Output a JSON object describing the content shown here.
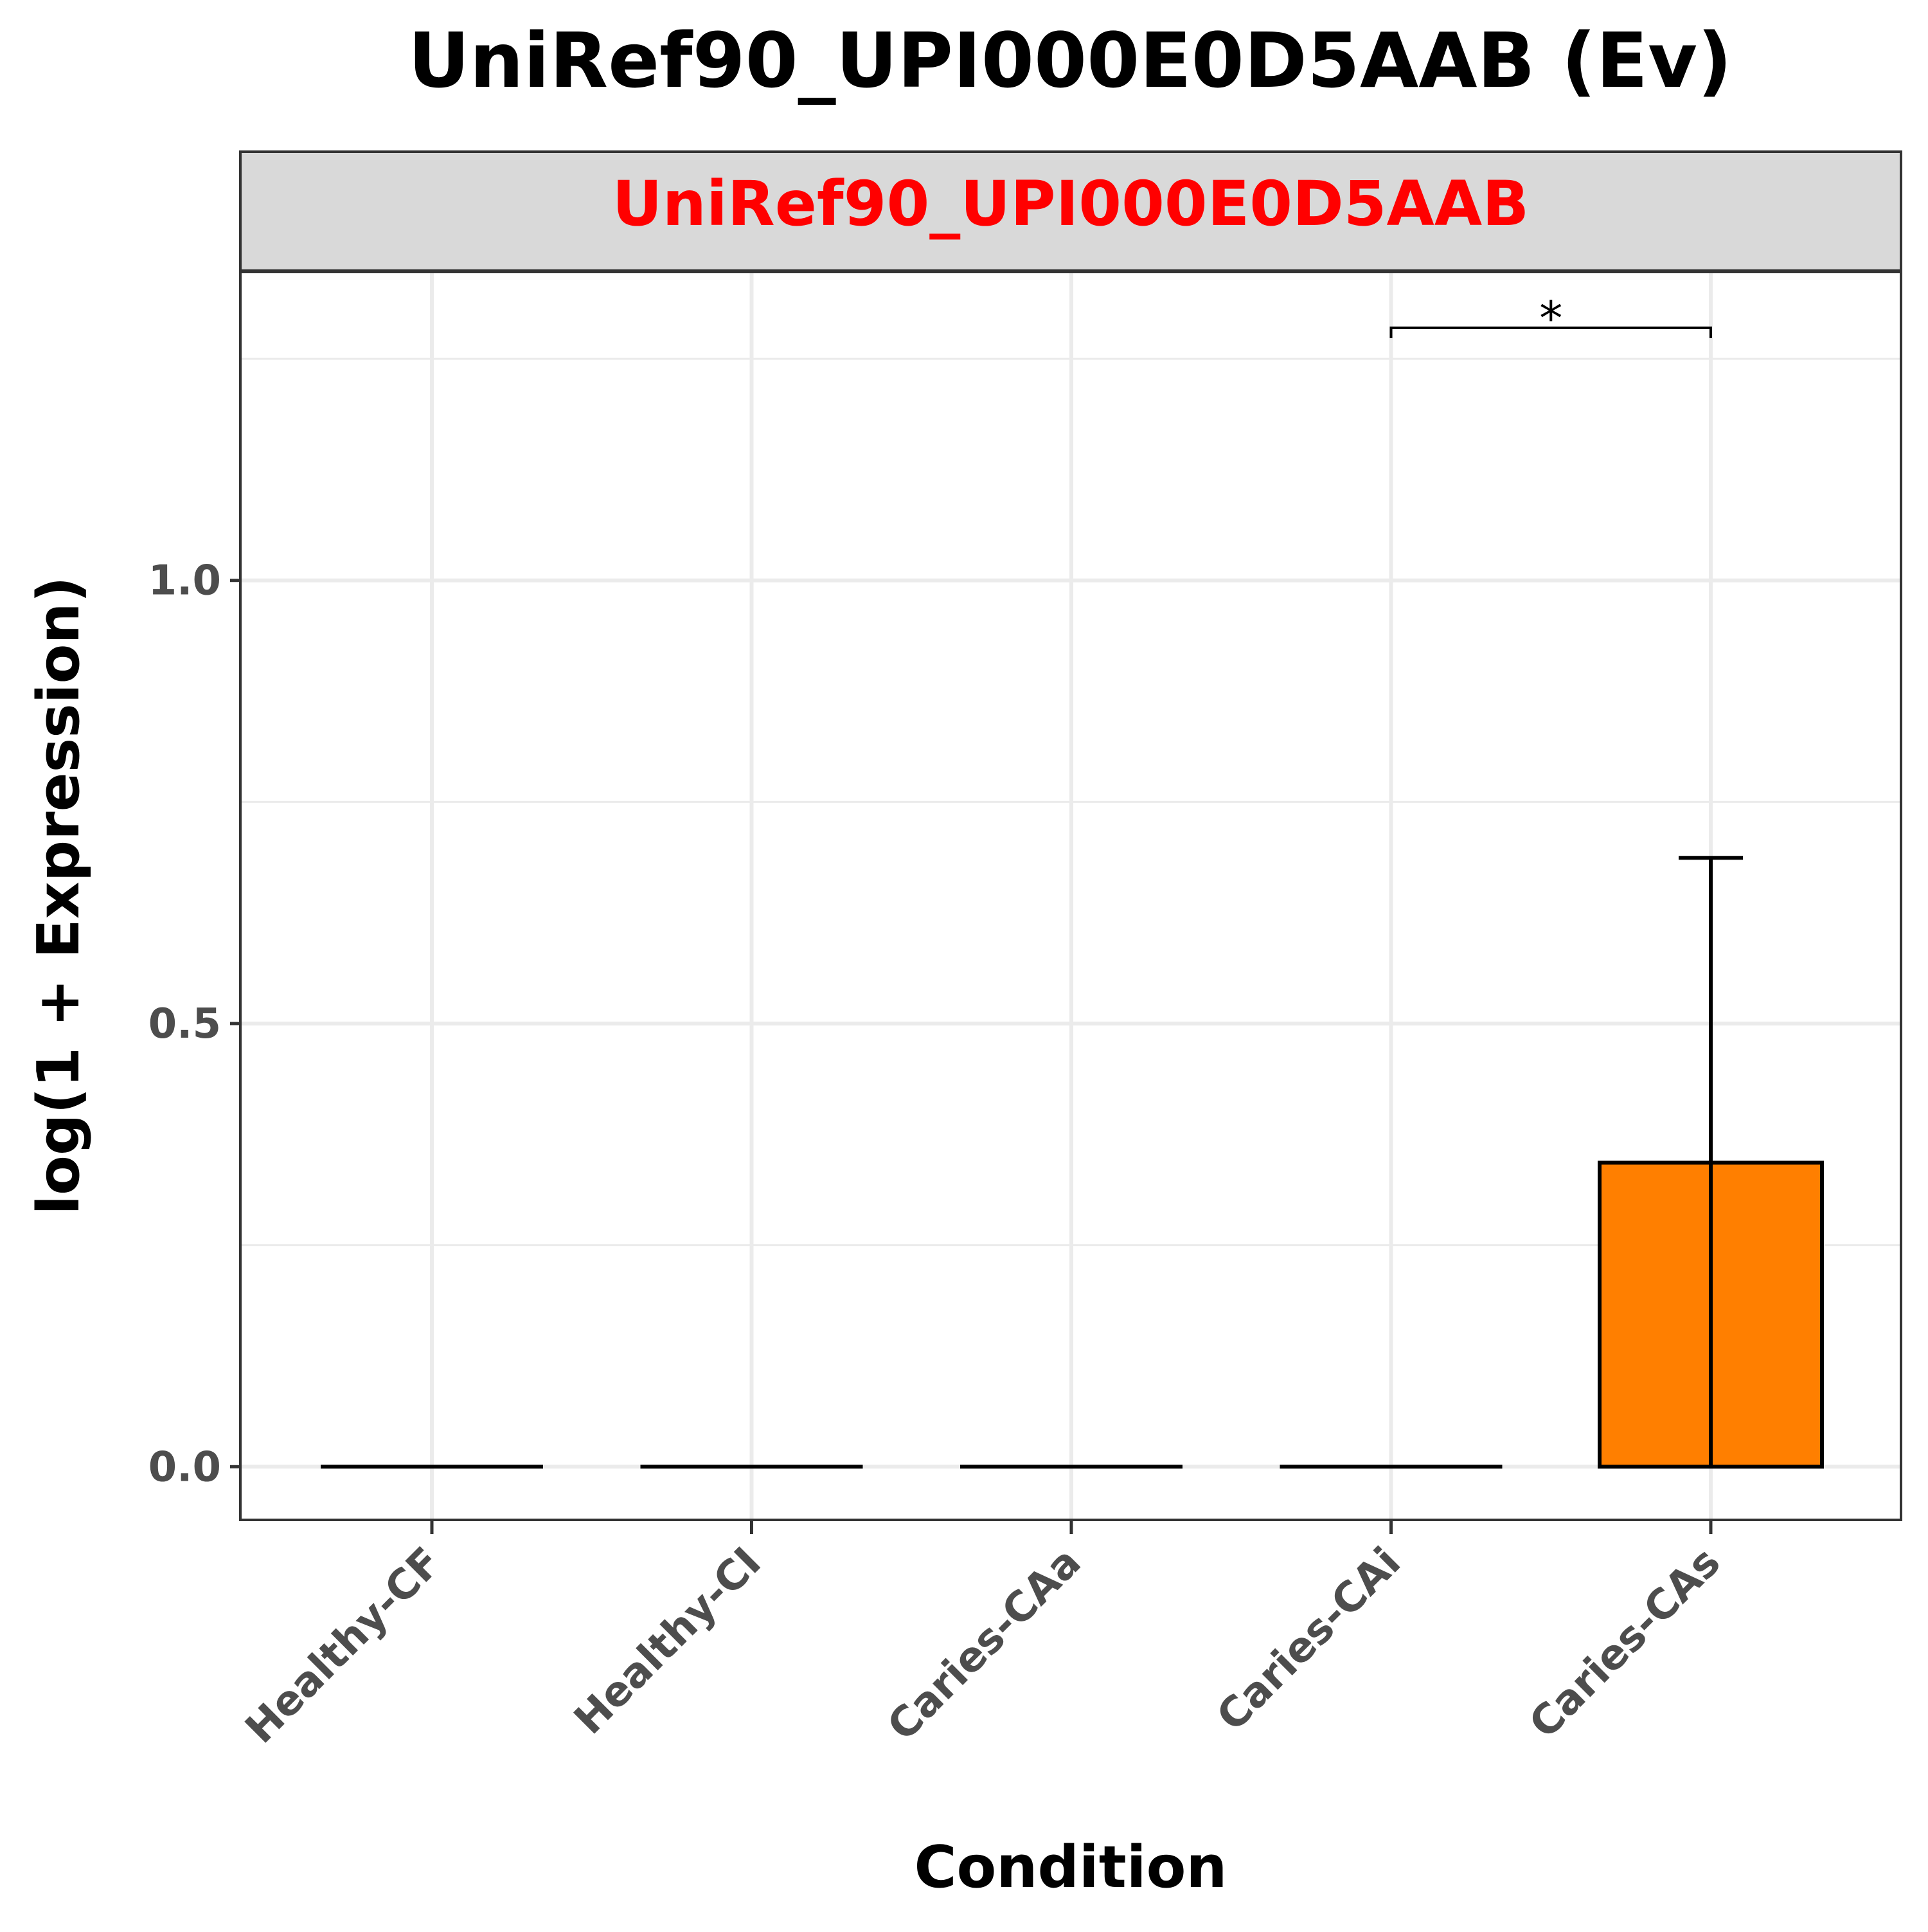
{
  "chart_data": {
    "type": "bar",
    "title": "UniRef90_UPI000E0D5AAB (Ev)",
    "facet_label": "UniRef90_UPI000E0D5AAB",
    "xlabel": "Condition",
    "ylabel": "log(1 + Expression)",
    "categories": [
      "Healthy-CF",
      "Healthy-CI",
      "Caries-CAa",
      "Caries-CAi",
      "Caries-CAs"
    ],
    "values": [
      0.0,
      0.0,
      0.0,
      0.0,
      0.343
    ],
    "error_upper": [
      0.0,
      0.0,
      0.0,
      0.0,
      0.687
    ],
    "ylim": [
      -0.06,
      1.348
    ],
    "yticks": [
      0.0,
      0.5,
      1.0
    ],
    "ytick_labels": [
      "0.0",
      "0.5",
      "1.0"
    ],
    "significance": [
      {
        "from": "Caries-CAi",
        "to": "Caries-CAs",
        "label": "*",
        "y": 1.285
      }
    ],
    "grid": true,
    "legend": "none",
    "colors": {
      "bar_fill": "#FF7F00",
      "bar_stroke": "#000000",
      "facet_strip_bg": "#D9D9D9",
      "facet_label_color": "#FF0000",
      "grid": "#EBEBEB",
      "tick_label": "#4D4D4D"
    }
  }
}
